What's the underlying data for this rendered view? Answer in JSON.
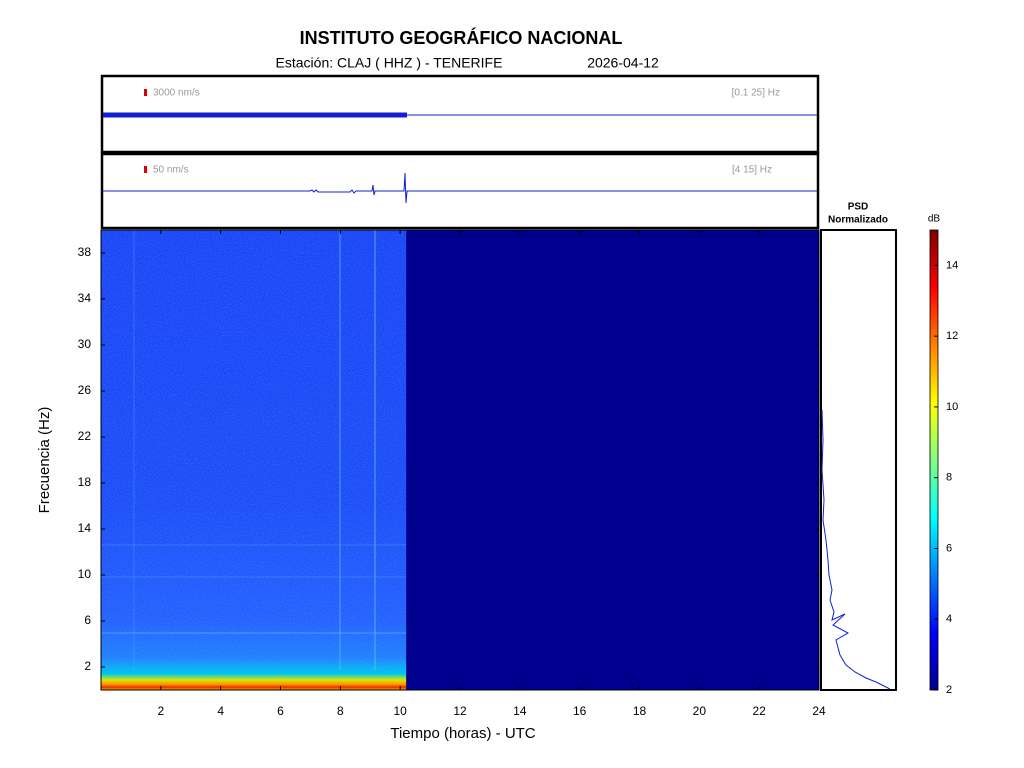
{
  "title": "INSTITUTO GEOGRÁFICO NACIONAL",
  "station_label": "Estación:  CLAJ ( HHZ ) - TENERIFE",
  "date": "2026-04-12",
  "traces": [
    {
      "scale_label": "3000 nm/s",
      "band_label": "[0.1 25] Hz"
    },
    {
      "scale_label": "50 nm/s",
      "band_label": "[4 15] Hz"
    }
  ],
  "chart_data": {
    "type": "spectrogram",
    "xlabel": "Tiempo (horas) - UTC",
    "ylabel": "Frecuencia  (Hz)",
    "xlim": [
      0,
      24
    ],
    "xticks": [
      2,
      4,
      6,
      8,
      10,
      12,
      14,
      16,
      18,
      20,
      22,
      24
    ],
    "ylim": [
      0,
      40
    ],
    "yticks": [
      2,
      6,
      10,
      14,
      18,
      22,
      26,
      30,
      34,
      38
    ],
    "data_end_hour": 10.2
  },
  "psd": {
    "title": "PSD",
    "subtitle": "Normalizado"
  },
  "colorbar": {
    "label": "dB",
    "lim": [
      2,
      15
    ],
    "ticks": [
      2,
      4,
      6,
      8,
      10,
      12,
      14
    ]
  }
}
